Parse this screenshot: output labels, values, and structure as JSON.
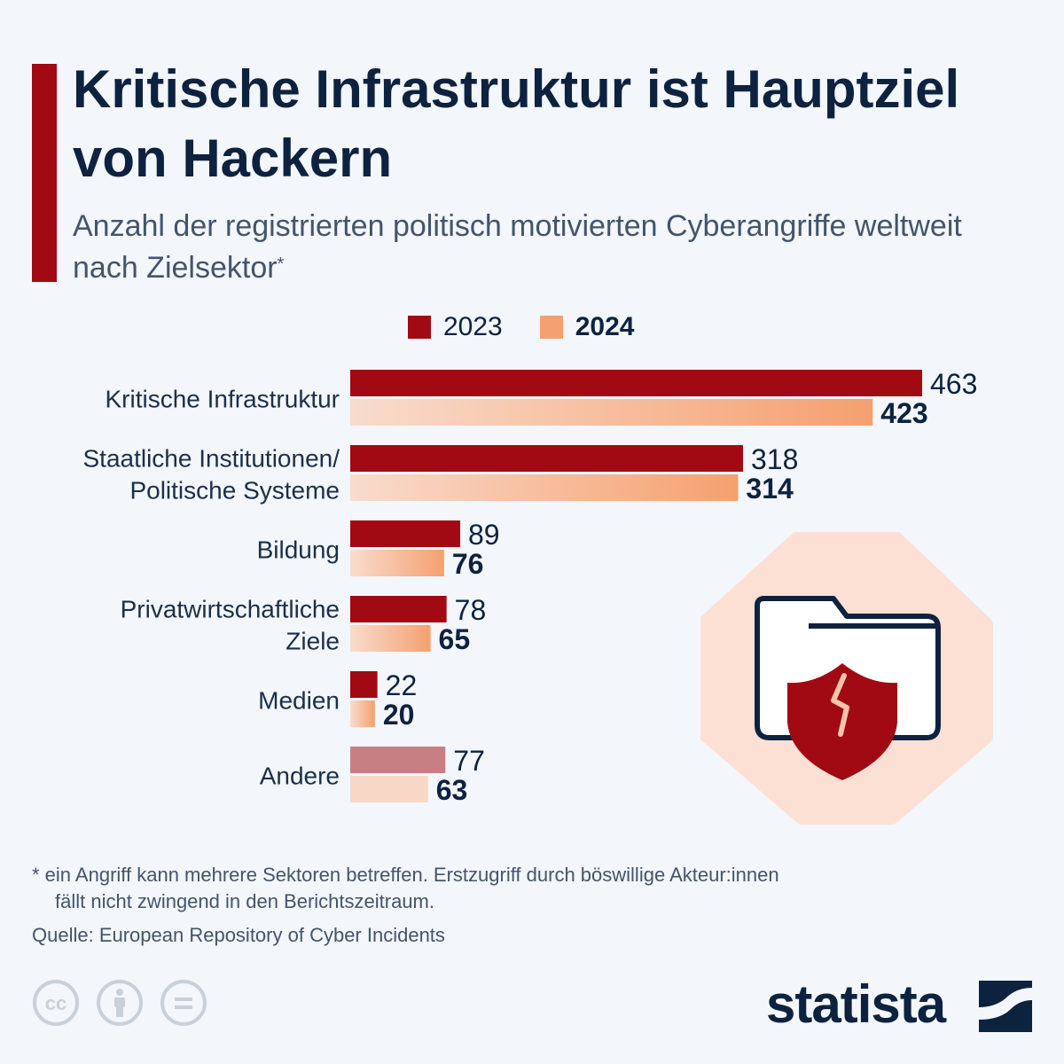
{
  "header": {
    "title": "Kritische Infrastruktur ist Hauptziel von Hackern",
    "subtitle": "Anzahl der registrierten politisch motivierten Cyberangriffe weltweit nach Zielsektor",
    "subtitle_mark": "*"
  },
  "colors": {
    "brand_red": "#a10a13",
    "series_2023": "#a10a13",
    "series_2024": "#f5a070",
    "other_2023": "#c77f84",
    "other_2024": "#f7d7c6",
    "navy": "#0d223f"
  },
  "chart_data": {
    "type": "bar",
    "orientation": "horizontal",
    "categories": [
      [
        "Kritische Infrastruktur"
      ],
      [
        "Staatliche Institutionen/",
        "Politische Systeme"
      ],
      [
        "Bildung"
      ],
      [
        "Privatwirtschaftliche",
        "Ziele"
      ],
      [
        "Medien"
      ],
      [
        "Andere"
      ]
    ],
    "series": [
      {
        "name": "2023",
        "values": [
          463,
          318,
          89,
          78,
          22,
          77
        ]
      },
      {
        "name": "2024",
        "values": [
          423,
          314,
          76,
          65,
          20,
          63
        ]
      }
    ],
    "xlim": [
      0,
      463
    ],
    "grid": false,
    "legend_position": "top"
  },
  "footer": {
    "footnote_line1": "* ein Angriff kann mehrere Sektoren betreffen. Erstzugriff durch böswillige Akteur:innen",
    "footnote_line2": "fällt nicht zwingend in den Berichtszeitraum.",
    "source": "Quelle: European Repository of Cyber Incidents",
    "brand": "statista",
    "license_icons": [
      "cc-icon",
      "attribution-icon",
      "no-derivatives-icon"
    ],
    "cc_text": "cc"
  }
}
